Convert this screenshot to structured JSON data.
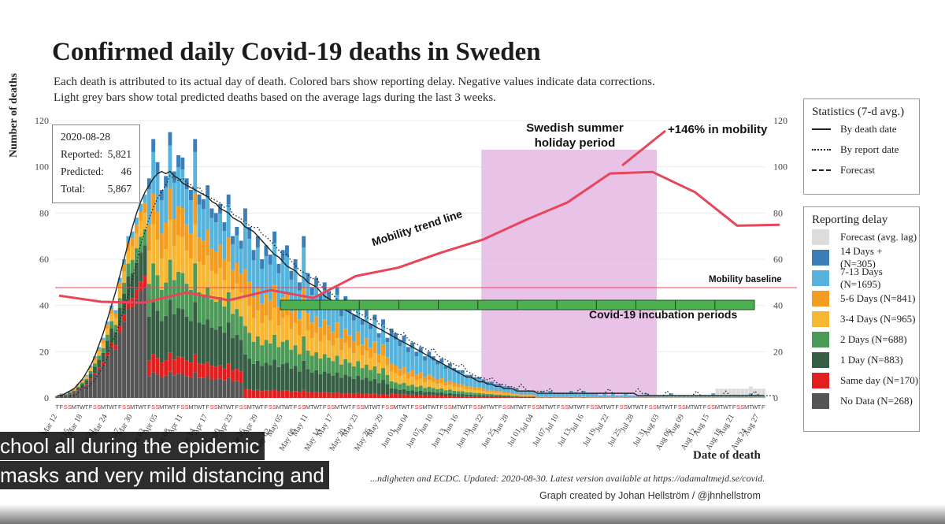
{
  "title": "Confirmed daily Covid-19 deaths in Sweden",
  "subtitle_line1": "Each death is attributed to its actual day of death. Colored bars show reporting delay. Negative values indicate data corrections.",
  "subtitle_line2": "Light grey bars show total predicted deaths based on the average lags during the last 3 weeks.",
  "infobox": {
    "date": "2020-08-28",
    "reported_label": "Reported:",
    "reported_value": "5,821",
    "predicted_label": "Predicted:",
    "predicted_value": "46",
    "total_label": "Total:",
    "total_value": "5,867"
  },
  "stats_legend": {
    "title": "Statistics (7-d avg.)",
    "items": [
      "By death date",
      "By report date",
      "Forecast"
    ]
  },
  "delay_legend": {
    "title": "Reporting delay",
    "items": [
      {
        "label": "Forecast (avg. lag)",
        "color": "#dcdcdc"
      },
      {
        "label": "14 Days + (N=305)",
        "color": "#3a7fb8"
      },
      {
        "label": "7-13 Days (N=1695)",
        "color": "#56b4dc"
      },
      {
        "label": "5-6 Days (N=841)",
        "color": "#f39c1f"
      },
      {
        "label": "3-4 Days (N=965)",
        "color": "#f7b733"
      },
      {
        "label": "2 Days (N=688)",
        "color": "#4c9a57"
      },
      {
        "label": "1 Day (N=883)",
        "color": "#355e44"
      },
      {
        "label": "Same day (N=170)",
        "color": "#e21f1f"
      },
      {
        "label": "No Data (N=268)",
        "color": "#555555"
      }
    ]
  },
  "annotations": {
    "holiday": "Swedish summer holiday period",
    "holiday_line1": "Swedish summer",
    "holiday_line2": "holiday period",
    "mobility_increase": "+146% in mobility",
    "trend": "Mobility trend line",
    "baseline": "Mobility baseline",
    "incubation": "Covid-19 incubation periods"
  },
  "x_title": "Date of death",
  "y_title": "Number of deaths",
  "source": "...ndigheten and ECDC. Updated: 2020-08-30. Latest version available at https://adamaltmejd.se/covid.",
  "credit": "Graph created by Johan Hellström / @jhnhellstrom",
  "captions": [
    "chool all during the epidemic",
    "masks and very mild distancing and"
  ],
  "colors": {
    "mobility": "#e8445a",
    "holiday": "#e5b7e4",
    "incubation": "#4caf50",
    "grey": "#dcdcdc"
  },
  "chart_data": {
    "type": "bar",
    "title": "Confirmed daily Covid-19 deaths in Sweden",
    "xlabel": "Date of death",
    "ylabel": "Number of deaths",
    "ylim": [
      0,
      120
    ],
    "y_ticks": [
      0,
      20,
      40,
      60,
      80,
      100,
      120
    ],
    "x_range": [
      "2020-03-12",
      "2020-08-28"
    ],
    "x_tick_labels": [
      "Mar 12",
      "Mar 15",
      "Mar 18",
      "Mar 21",
      "Mar 24",
      "Mar 27",
      "Mar 30",
      "Apr 02",
      "Apr 05",
      "Apr 08",
      "Apr 11",
      "Apr 14",
      "Apr 17",
      "Apr 20",
      "Apr 23",
      "Apr 26",
      "Apr 29",
      "May 02",
      "May 05",
      "May 08",
      "May 11",
      "May 14",
      "May 17",
      "May 20",
      "May 23",
      "May 26",
      "May 29",
      "Jun 01",
      "Jun 04",
      "Jun 07",
      "Jun 10",
      "Jun 13",
      "Jun 16",
      "Jun 19",
      "Jun 22",
      "Jun 25",
      "Jun 28",
      "Jul 01",
      "Jul 04",
      "Jul 07",
      "Jul 10",
      "Jul 13",
      "Jul 16",
      "Jul 19",
      "Jul 22",
      "Jul 25",
      "Jul 28",
      "Jul 31",
      "Aug 03",
      "Aug 06",
      "Aug 09",
      "Aug 12",
      "Aug 15",
      "Aug 18",
      "Aug 21",
      "Aug 24",
      "Aug 27"
    ],
    "weekday_row": "TFSSMTWTFSSMTWTFSSMTWTFSSMTWTFSSMTWTFSSMTWTFSSMTWTFSSMTWTFSSMTWTFSSMTWTFSSMTWTFSSMTWTFSSMTWTFSSMTWTFSSMTWTFSSMTWTFSSMTWTFSSMTWTFSSMTWTFSSMTWTFSSMTWTFSSMTWTFSSMTWTFSSMTWTF",
    "daily_totals_note": "stacked bars by reporting delay category; values estimated",
    "daily_totals": [
      1,
      2,
      2,
      3,
      4,
      6,
      8,
      10,
      14,
      18,
      22,
      26,
      33,
      40,
      38,
      52,
      60,
      70,
      72,
      78,
      84,
      88,
      95,
      112,
      102,
      90,
      96,
      115,
      98,
      105,
      104,
      95,
      90,
      112,
      88,
      86,
      92,
      82,
      80,
      84,
      76,
      88,
      70,
      74,
      68,
      82,
      74,
      64,
      70,
      60,
      66,
      62,
      72,
      58,
      64,
      66,
      55,
      60,
      50,
      70,
      54,
      48,
      52,
      45,
      50,
      46,
      42,
      48,
      38,
      44,
      40,
      36,
      42,
      34,
      38,
      32,
      36,
      28,
      34,
      26,
      30,
      28,
      25,
      27,
      22,
      24,
      20,
      22,
      18,
      20,
      18,
      16,
      17,
      14,
      15,
      13,
      12,
      12,
      10,
      10,
      9,
      9,
      8,
      7,
      7,
      6,
      6,
      5,
      5,
      4,
      4,
      3,
      3,
      3,
      3,
      2,
      3,
      2,
      3,
      2,
      2,
      2,
      2,
      3,
      2,
      2,
      3,
      2,
      2,
      2,
      1,
      2,
      1,
      2,
      1,
      1,
      2,
      1,
      1,
      1,
      1,
      2,
      1,
      1,
      1,
      1,
      1,
      2,
      1,
      1,
      1,
      1,
      1,
      1,
      1,
      1,
      1,
      2,
      1,
      1,
      1,
      1,
      1,
      1,
      1,
      1,
      2,
      1,
      1,
      1
    ],
    "series": [
      {
        "name": "By death date (7-d avg.)",
        "values": [
          1,
          1,
          2,
          3,
          4,
          6,
          8,
          11,
          14,
          18,
          23,
          28,
          34,
          40,
          46,
          53,
          60,
          67,
          74,
          80,
          85,
          89,
          92,
          95,
          97,
          98,
          97,
          98,
          96,
          95,
          93,
          92,
          91,
          90,
          89,
          88,
          87,
          85,
          84,
          82,
          81,
          80,
          78,
          77,
          76,
          74,
          73,
          72,
          70,
          68,
          66,
          64,
          62,
          61,
          59,
          57,
          56,
          55,
          53,
          52,
          50,
          49,
          48,
          46,
          44,
          43,
          42,
          40,
          39,
          38,
          37,
          36,
          35,
          34,
          33,
          32,
          31,
          30,
          29,
          28,
          27,
          26,
          25,
          24,
          23,
          22,
          21,
          20,
          19,
          18,
          17,
          16,
          15,
          14,
          13,
          12,
          11,
          10,
          9,
          9,
          8,
          7,
          7,
          6,
          6,
          5,
          5,
          4,
          4,
          4,
          3,
          3,
          3,
          3,
          3,
          2,
          2,
          2,
          2,
          2,
          2,
          2,
          2,
          2,
          2,
          2,
          2,
          2,
          2,
          2,
          2,
          2,
          2,
          2,
          2,
          2,
          2,
          2,
          2,
          1,
          1,
          1,
          1,
          1,
          1,
          1,
          1,
          1,
          1,
          1,
          1,
          1,
          1,
          1,
          1,
          1,
          1,
          1,
          1,
          1,
          1,
          1,
          1,
          1,
          1,
          1,
          1,
          1,
          1,
          1
        ]
      }
    ],
    "mobility_axis_ticks": [
      40,
      60,
      80,
      100,
      120
    ],
    "mobility_trend": {
      "dates": [
        "Mar 12",
        "Mar 20",
        "Apr 01",
        "Apr 10",
        "Apr 20",
        "May 01",
        "May 10",
        "May 20",
        "Jun 01",
        "Jun 10",
        "Jun 20",
        "Jul 01",
        "Jul 10",
        "Jul 20",
        "Jul 31",
        "Aug 10",
        "Aug 20",
        "Aug 28"
      ],
      "values": [
        46,
        41,
        43,
        45,
        44,
        46,
        45,
        52,
        58,
        62,
        70,
        76,
        86,
        96,
        99,
        88,
        76,
        74
      ]
    },
    "mobility_baseline": 47
  }
}
